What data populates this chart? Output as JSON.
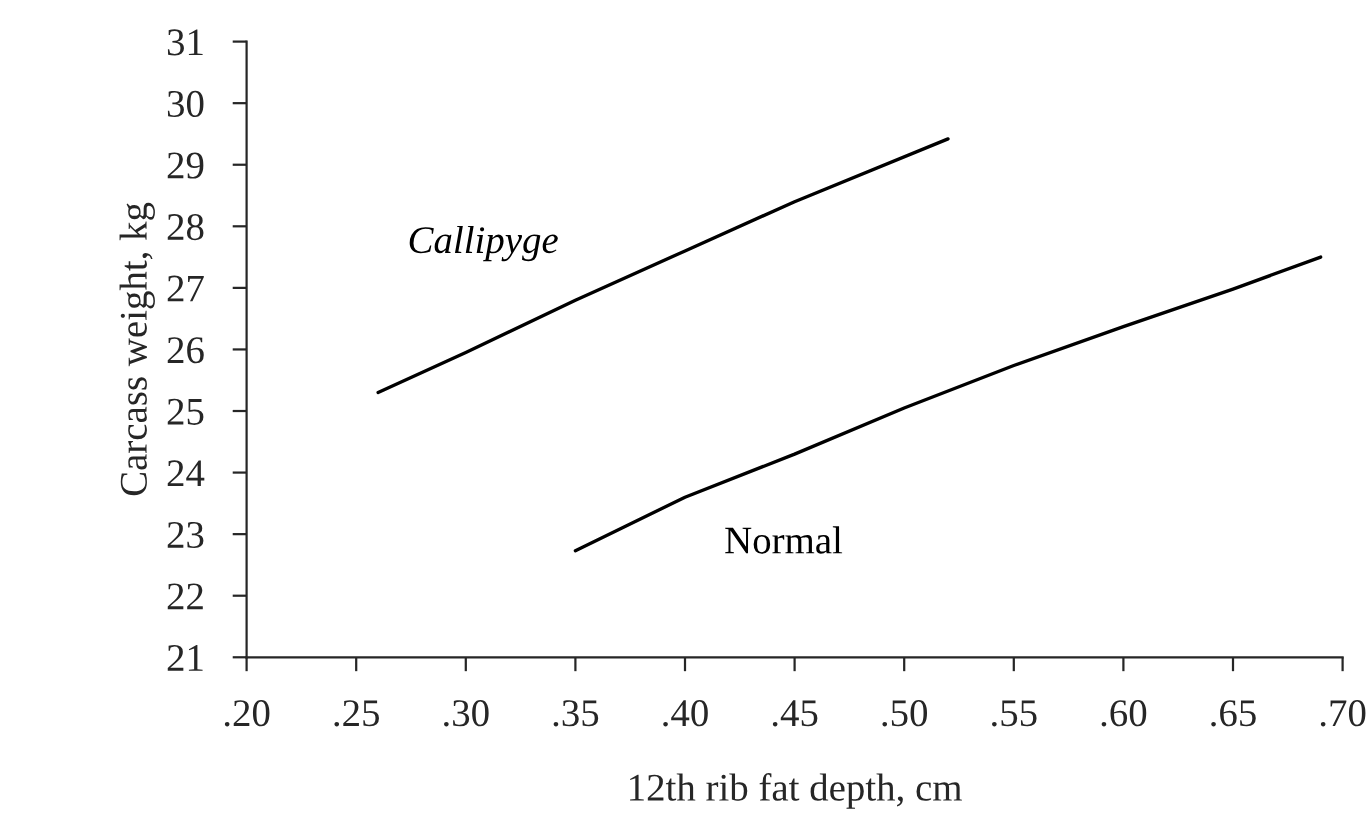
{
  "chart_data": {
    "type": "line",
    "xlabel": "12th rib fat depth, cm",
    "ylabel": "Carcass weight, kg",
    "series": [
      {
        "name": "Callipyge",
        "color": "#000000",
        "x": [
          0.26,
          0.3,
          0.35,
          0.4,
          0.45,
          0.52
        ],
        "values": [
          25.3,
          25.95,
          26.8,
          27.6,
          28.4,
          29.42
        ]
      },
      {
        "name": "Normal",
        "color": "#000000",
        "x": [
          0.35,
          0.4,
          0.45,
          0.5,
          0.55,
          0.6,
          0.65,
          0.69
        ],
        "values": [
          22.73,
          23.6,
          24.3,
          25.05,
          25.74,
          26.37,
          26.98,
          27.5
        ]
      }
    ],
    "xlim": [
      0.2,
      0.7
    ],
    "ylim": [
      21,
      31
    ],
    "xticks": [
      {
        "value": 0.2,
        "label": ".20"
      },
      {
        "value": 0.25,
        "label": ".25"
      },
      {
        "value": 0.3,
        "label": ".30"
      },
      {
        "value": 0.35,
        "label": ".35"
      },
      {
        "value": 0.4,
        "label": ".40"
      },
      {
        "value": 0.45,
        "label": ".45"
      },
      {
        "value": 0.5,
        "label": ".50"
      },
      {
        "value": 0.55,
        "label": ".55"
      },
      {
        "value": 0.6,
        "label": ".60"
      },
      {
        "value": 0.65,
        "label": ".65"
      },
      {
        "value": 0.7,
        "label": ".70"
      }
    ],
    "yticks": [
      21,
      22,
      23,
      24,
      25,
      26,
      27,
      28,
      29,
      30,
      31
    ],
    "grid": false,
    "marker": "none",
    "line_style": "solid"
  }
}
